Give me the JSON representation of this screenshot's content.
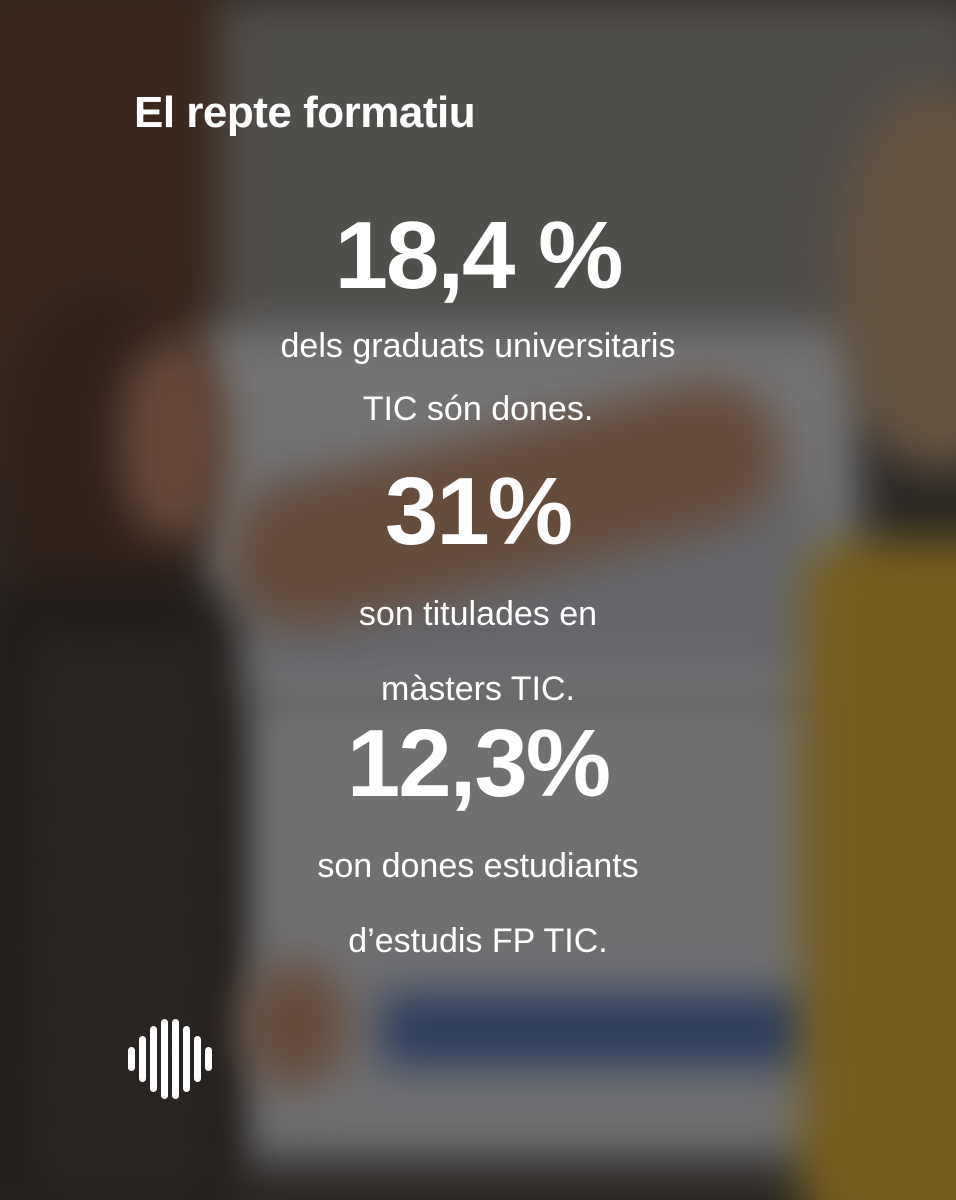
{
  "title": "El repte formatiu",
  "stats": [
    {
      "value": "18,4 %",
      "line1": "dels graduats universitaris",
      "line2": "TIC són dones."
    },
    {
      "value": "31%",
      "line1": "son titulades en",
      "line2": "màsters TIC."
    },
    {
      "value": "12,3%",
      "line1": "son dones estudiants",
      "line2": "d’estudis FP TIC."
    }
  ],
  "logo": {
    "icon": "soundwave-logo-icon",
    "color": "#ffffff"
  },
  "colors": {
    "text": "#ffffff",
    "overlay": "#181614"
  }
}
